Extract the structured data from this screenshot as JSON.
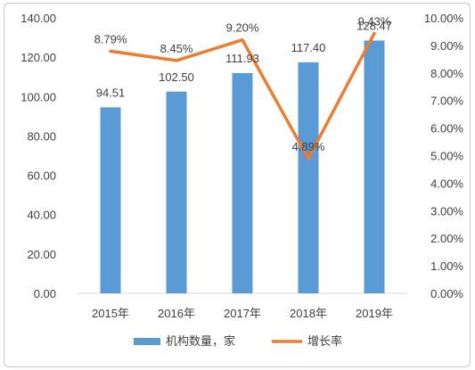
{
  "chart_data": {
    "type": "bar+line",
    "categories": [
      "2015年",
      "2016年",
      "2017年",
      "2018年",
      "2019年"
    ],
    "series": [
      {
        "name": "机构数量，家",
        "type": "bar",
        "axis": "left",
        "values": [
          94.51,
          102.5,
          111.93,
          117.4,
          128.47
        ],
        "labels": [
          "94.51",
          "102.50",
          "111.93",
          "117.40",
          "128.47"
        ],
        "color": "#5b9bd5"
      },
      {
        "name": "增长率",
        "type": "line",
        "axis": "right",
        "values": [
          8.79,
          8.45,
          9.2,
          4.89,
          9.43
        ],
        "labels": [
          "8.79%",
          "8.45%",
          "9.20%",
          "4.89%",
          "9.43%"
        ],
        "color": "#ed7d31"
      }
    ],
    "y_left": {
      "range": [
        0,
        140
      ],
      "ticks": [
        "0.00",
        "20.00",
        "40.00",
        "60.00",
        "80.00",
        "100.00",
        "120.00",
        "140.00"
      ]
    },
    "y_right": {
      "range": [
        0,
        10
      ],
      "ticks": [
        "0.00%",
        "1.00%",
        "2.00%",
        "3.00%",
        "4.00%",
        "5.00%",
        "6.00%",
        "7.00%",
        "8.00%",
        "9.00%",
        "10.00%"
      ]
    },
    "grid": false,
    "legend_position": "bottom"
  }
}
